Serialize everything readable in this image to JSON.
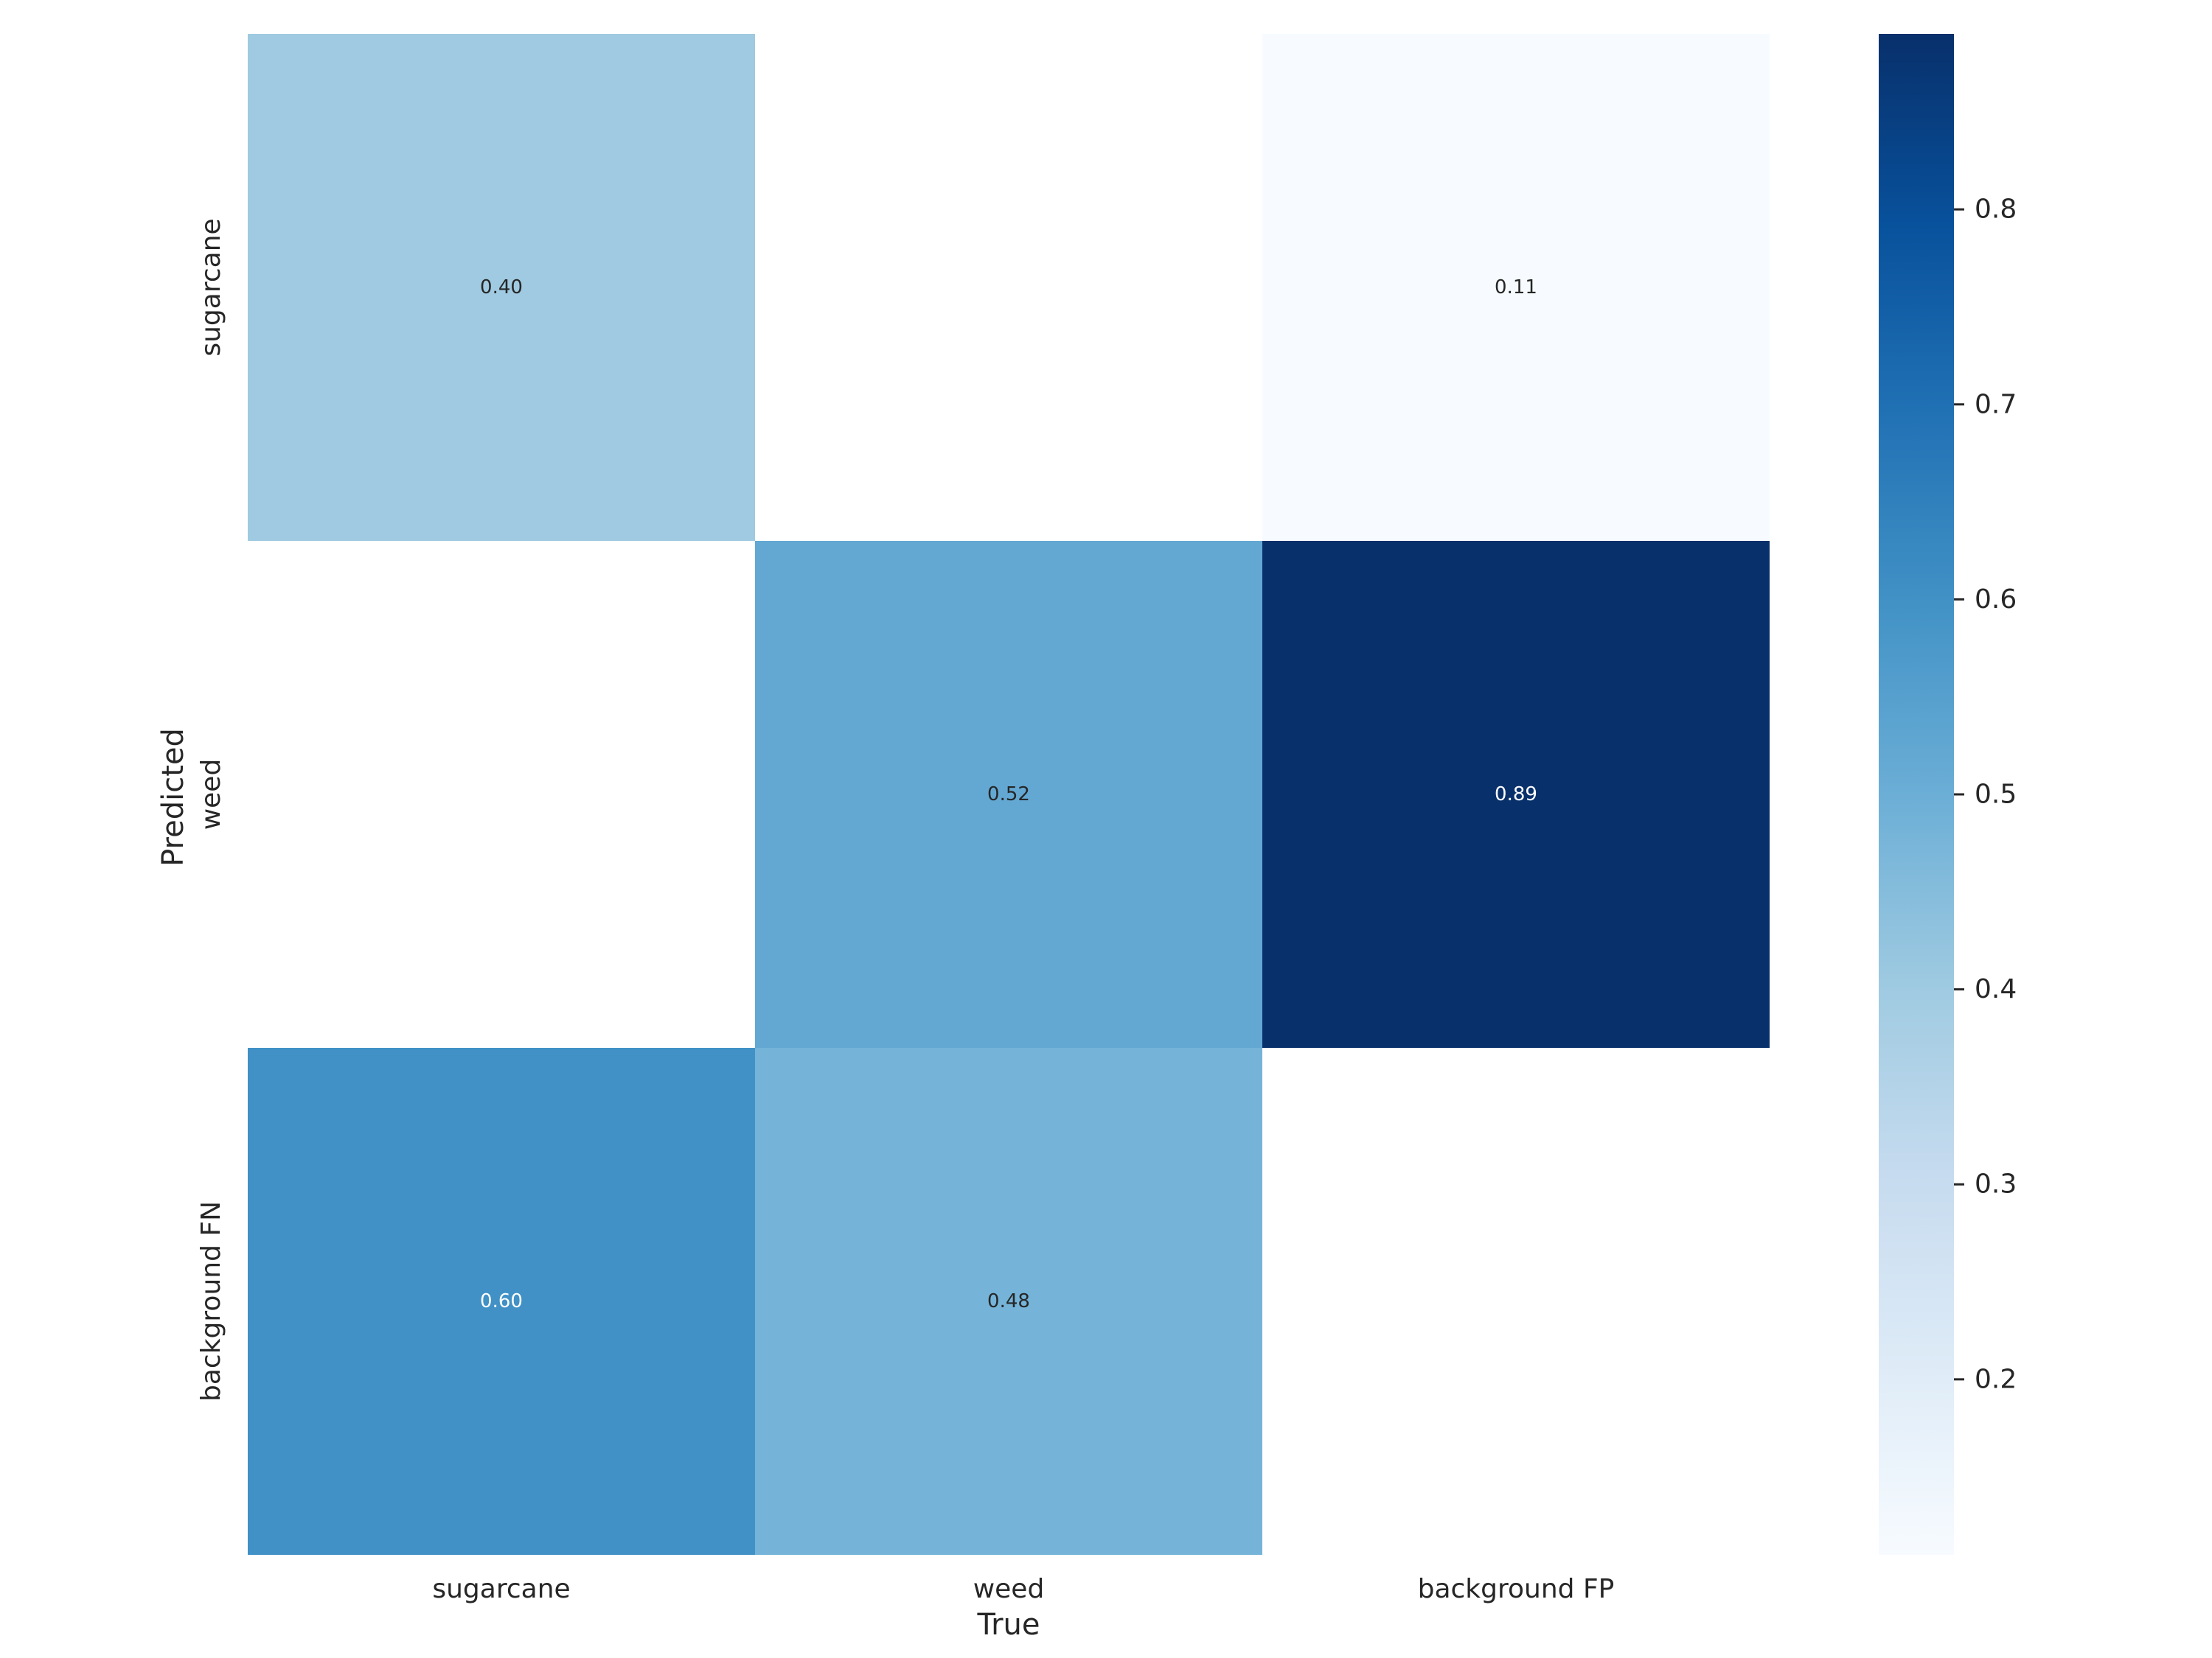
{
  "chart_data": {
    "type": "heatmap",
    "title": "",
    "xlabel": "True",
    "ylabel": "Predicted",
    "x_categories": [
      "sugarcane",
      "weed",
      "background FP"
    ],
    "y_categories": [
      "sugarcane",
      "weed",
      "background FN"
    ],
    "values": [
      [
        0.4,
        null,
        0.11
      ],
      [
        null,
        0.52,
        0.89
      ],
      [
        0.6,
        0.48,
        null
      ]
    ],
    "labels": [
      [
        "0.40",
        "",
        "0.11"
      ],
      [
        "",
        "0.52",
        "0.89"
      ],
      [
        "0.60",
        "0.48",
        ""
      ]
    ],
    "colormap": "Blues",
    "colorbar": {
      "vmin": 0.11,
      "vmax": 0.89,
      "ticks": [
        0.2,
        0.3,
        0.4,
        0.5,
        0.6,
        0.7,
        0.8
      ],
      "tick_labels": [
        "0.2",
        "0.3",
        "0.4",
        "0.5",
        "0.6",
        "0.7",
        "0.8"
      ]
    },
    "grid": false
  }
}
